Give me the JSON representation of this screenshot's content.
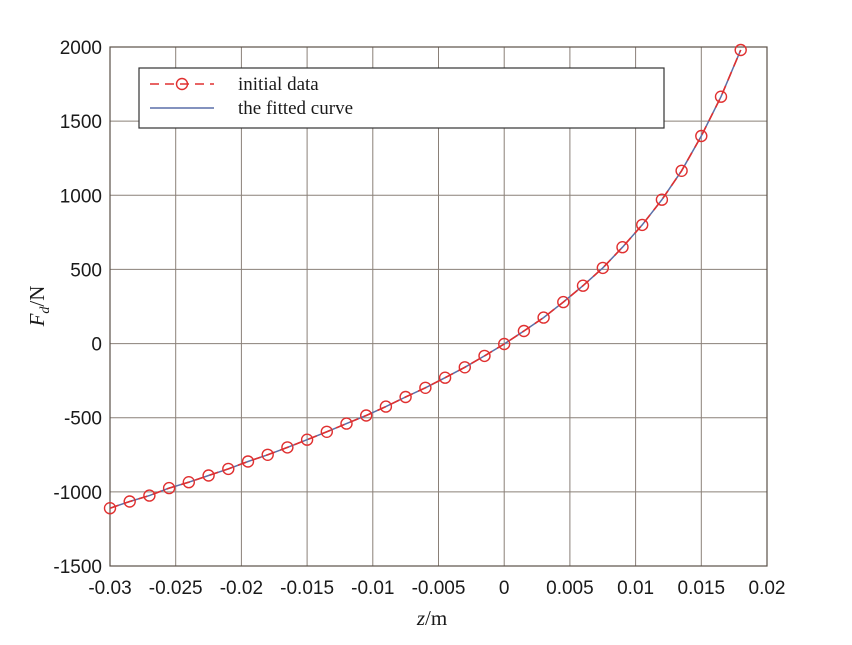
{
  "chart_data": {
    "type": "line",
    "xlabel": {
      "italic": "z",
      "rest": "/m"
    },
    "ylabel": {
      "italic": "F",
      "sub": "d",
      "rest": "/N"
    },
    "xlim": [
      -0.03,
      0.02
    ],
    "ylim": [
      -1500,
      2000
    ],
    "xticks": [
      "-0.03",
      "-0.025",
      "-0.02",
      "-0.015",
      "-0.01",
      "-0.005",
      "0",
      "0.005",
      "0.01",
      "0.015",
      "0.02"
    ],
    "yticks": [
      "-1500",
      "-1000",
      "-500",
      "0",
      "500",
      "1000",
      "1500",
      "2000"
    ],
    "grid": true,
    "legend_position": "top-left",
    "series": [
      {
        "name": "initial data",
        "style": "dashed-circle",
        "color": "#e03030",
        "x": [
          -0.03,
          -0.0285,
          -0.027,
          -0.0255,
          -0.024,
          -0.0225,
          -0.021,
          -0.0195,
          -0.018,
          -0.0165,
          -0.015,
          -0.0135,
          -0.012,
          -0.0105,
          -0.009,
          -0.0075,
          -0.006,
          -0.0045,
          -0.003,
          -0.0015,
          0,
          0.0015,
          0.003,
          0.0045,
          0.006,
          0.0075,
          0.009,
          0.0105,
          0.012,
          0.0135,
          0.015,
          0.0165,
          0.018
        ],
        "y": [
          -1110,
          -1065,
          -1025,
          -975,
          -935,
          -890,
          -845,
          -795,
          -750,
          -700,
          -648,
          -595,
          -540,
          -485,
          -425,
          -360,
          -298,
          -230,
          -160,
          -83,
          -3,
          85,
          175,
          280,
          390,
          510,
          650,
          800,
          970,
          1165,
          1400,
          1665,
          1980
        ]
      },
      {
        "name": "the fitted curve",
        "style": "solid",
        "color": "#5a6fa8",
        "x": [
          -0.03,
          -0.0285,
          -0.027,
          -0.0255,
          -0.024,
          -0.0225,
          -0.021,
          -0.0195,
          -0.018,
          -0.0165,
          -0.015,
          -0.0135,
          -0.012,
          -0.0105,
          -0.009,
          -0.0075,
          -0.006,
          -0.0045,
          -0.003,
          -0.0015,
          0,
          0.0015,
          0.003,
          0.0045,
          0.006,
          0.0075,
          0.009,
          0.0105,
          0.012,
          0.0135,
          0.015,
          0.0165,
          0.018
        ],
        "y": [
          -1110,
          -1065,
          -1025,
          -975,
          -935,
          -890,
          -845,
          -795,
          -750,
          -700,
          -648,
          -595,
          -540,
          -485,
          -425,
          -360,
          -298,
          -230,
          -160,
          -83,
          -3,
          85,
          175,
          280,
          390,
          510,
          650,
          800,
          970,
          1165,
          1400,
          1665,
          1980
        ]
      }
    ]
  }
}
